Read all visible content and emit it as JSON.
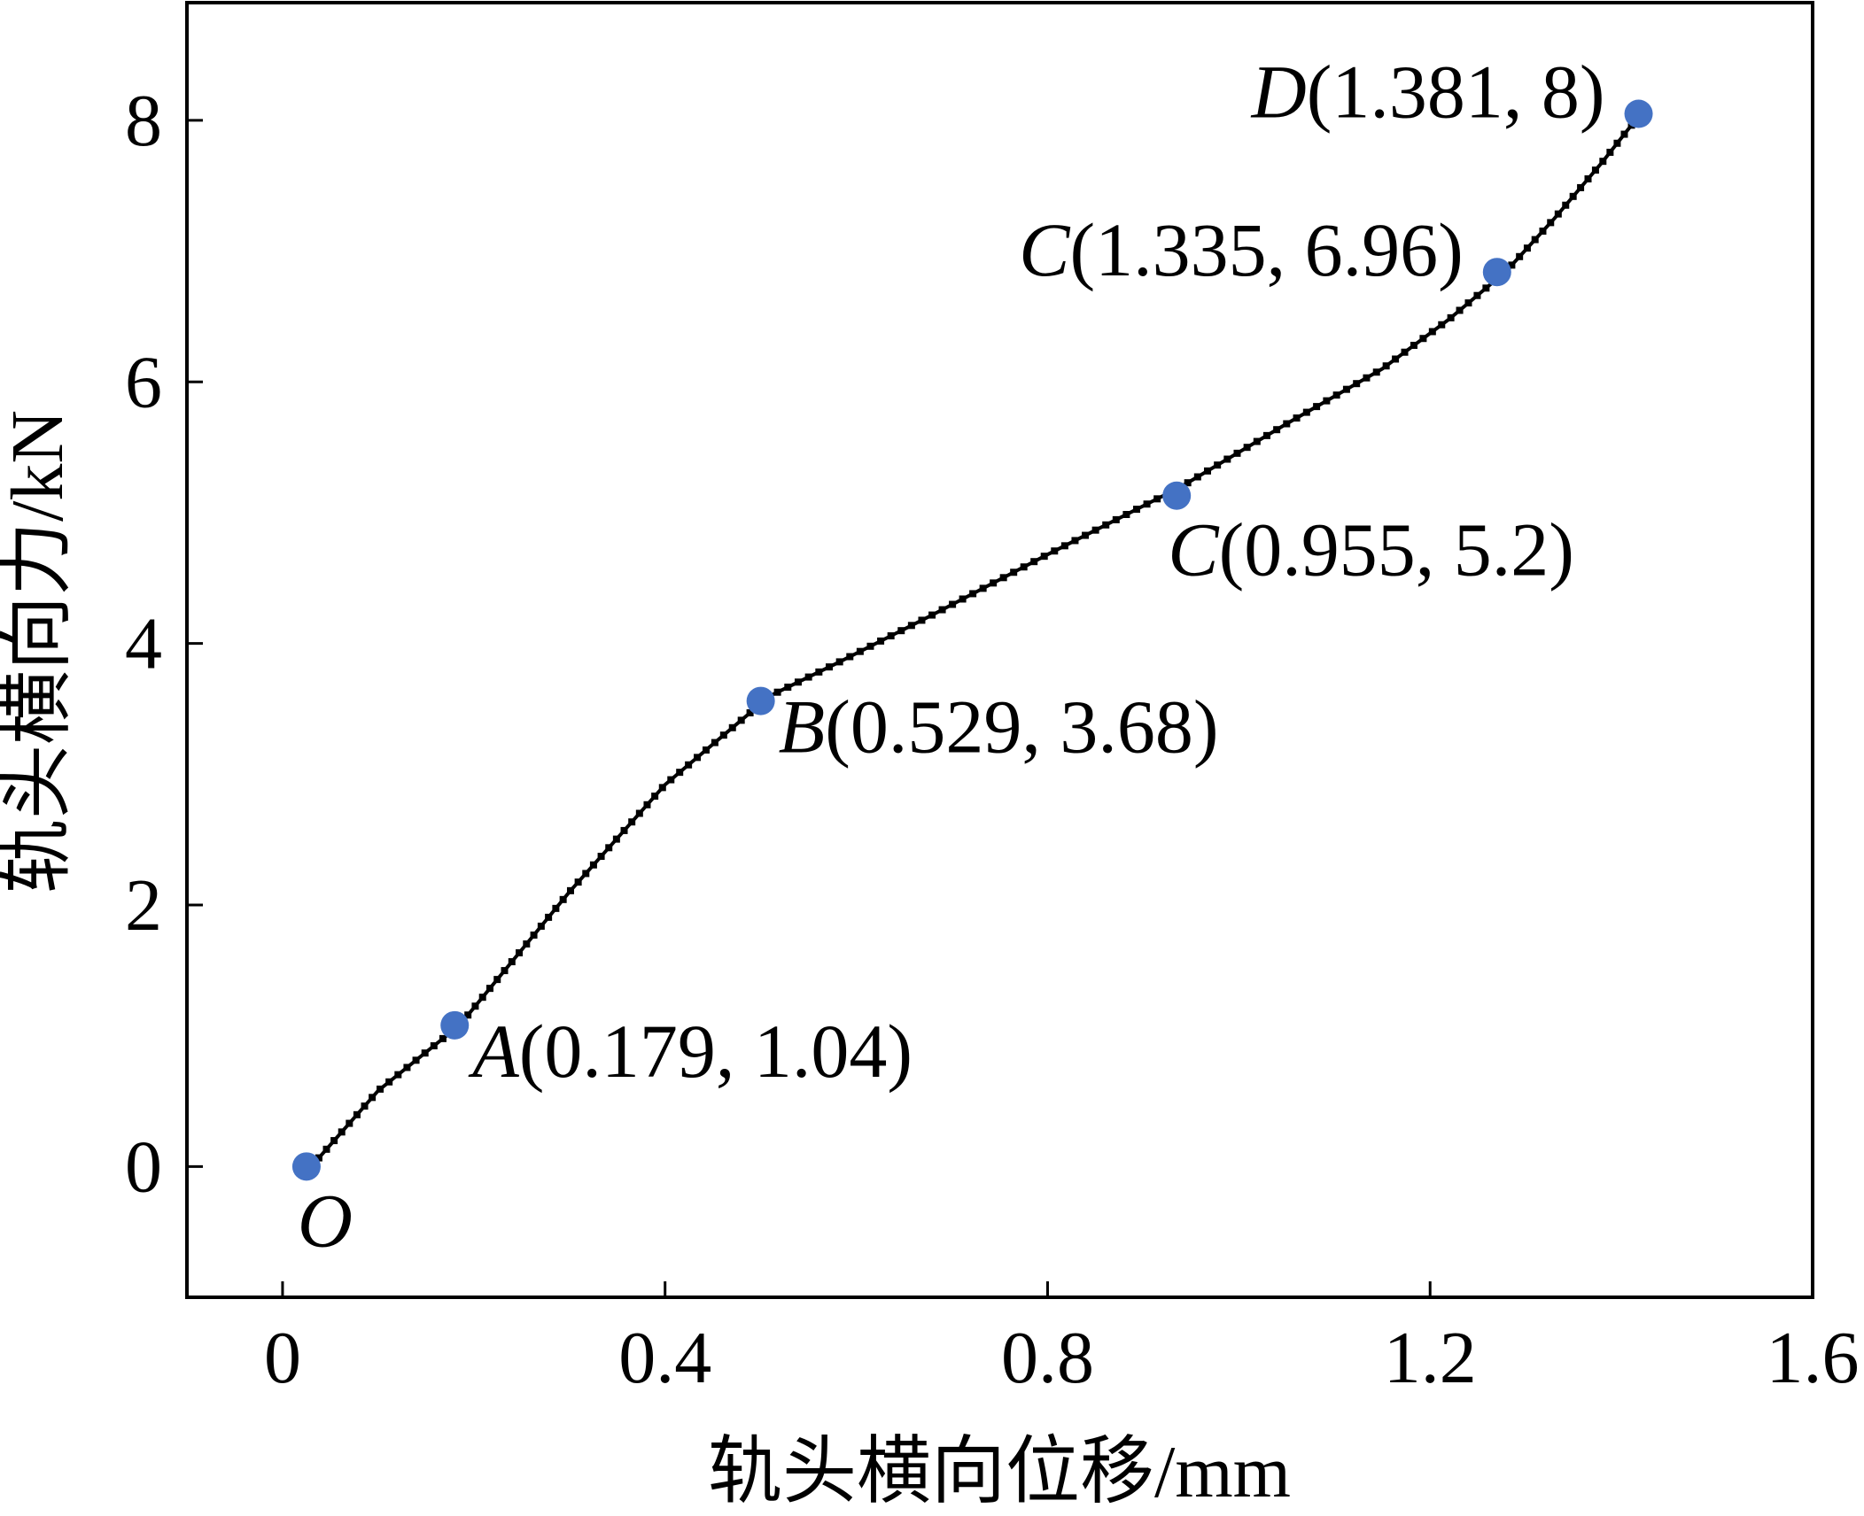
{
  "chart_data": {
    "type": "line",
    "xlabel": "轨头横向位移/mm",
    "ylabel": "轨头横向力/kN",
    "xlim": [
      -0.1,
      1.6
    ],
    "ylim": [
      -1,
      8.9
    ],
    "x_ticks": [
      "0",
      "0.4",
      "0.8",
      "1.2",
      "1.6"
    ],
    "y_ticks": [
      "0",
      "2",
      "4",
      "6",
      "8"
    ],
    "grid": false,
    "series": [
      {
        "x": [
          0.03,
          0.1,
          0.185,
          0.3,
          0.4,
          0.51,
          0.58,
          0.68,
          0.8,
          0.94,
          1.05,
          1.15,
          1.22,
          1.28,
          1.33,
          1.38,
          1.42
        ],
        "y": [
          0.0,
          0.58,
          1.08,
          2.1,
          2.92,
          3.6,
          3.85,
          4.22,
          4.68,
          5.2,
          5.68,
          6.1,
          6.48,
          6.85,
          7.25,
          7.68,
          8.05
        ],
        "color": "#000000"
      }
    ],
    "key_points": [
      {
        "letter": "O",
        "coords": "",
        "x": 0.025,
        "y": 0.0,
        "label_pos": "below-right"
      },
      {
        "letter": "A",
        "coords": "(0.179, 1.04)",
        "x": 0.18,
        "y": 1.08,
        "label_pos": "right"
      },
      {
        "letter": "B",
        "coords": "(0.529, 3.68)",
        "x": 0.5,
        "y": 3.56,
        "label_pos": "right"
      },
      {
        "letter": "C",
        "coords": "(0.955, 5.2)",
        "x": 0.935,
        "y": 5.13,
        "label_pos": "below-right"
      },
      {
        "letter": "C",
        "coords": "(1.335, 6.96)",
        "x": 1.27,
        "y": 6.84,
        "label_pos": "left"
      },
      {
        "letter": "D",
        "coords": "(1.381, 8)",
        "x": 1.418,
        "y": 8.05,
        "label_pos": "left"
      }
    ],
    "point_color": "#4472c4"
  }
}
